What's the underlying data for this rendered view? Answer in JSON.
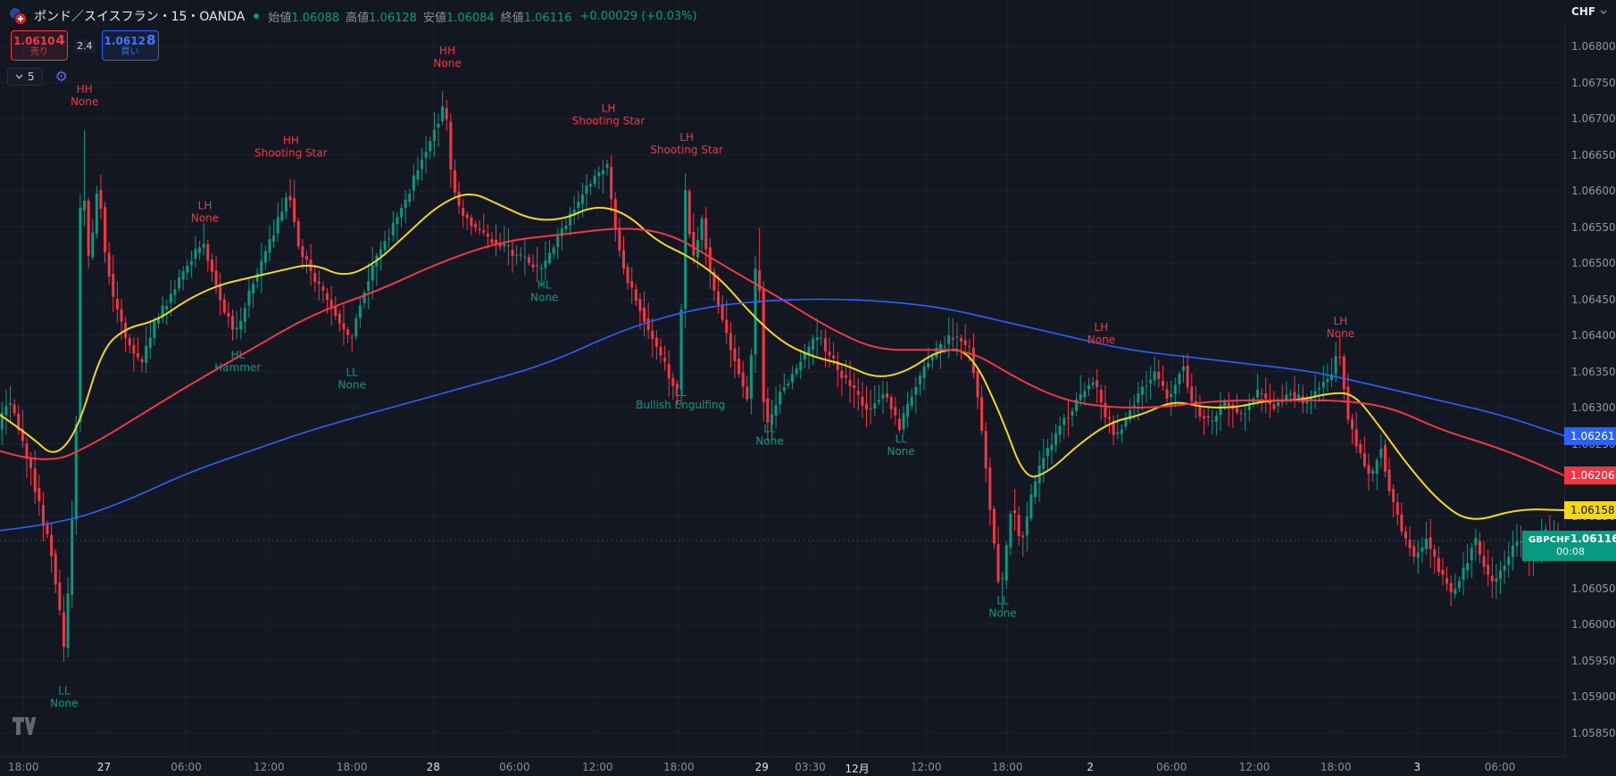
{
  "header": {
    "symbol_title": "ポンド／スイスフラン・15・OANDA",
    "ohlc": [
      {
        "label": "始値",
        "value": "1.06088"
      },
      {
        "label": "高値",
        "value": "1.06128"
      },
      {
        "label": "安値",
        "value": "1.06084"
      },
      {
        "label": "終値",
        "value": "1.06116"
      }
    ],
    "change": "+0.00029 (+0.03%)",
    "sell_price_main": "1.0610",
    "sell_price_big": "4",
    "sell_label": "売り",
    "spread": "2.4",
    "buy_price_main": "1.0612",
    "buy_price_big": "8",
    "buy_label": "買い",
    "indicator_count": "5"
  },
  "top_right": {
    "currency": "CHF"
  },
  "price_tags": [
    {
      "name": "ma-slow-price-tag",
      "value": "1.06261",
      "price": 1.06261,
      "bg": "#2962ff",
      "fg": "#ffffff"
    },
    {
      "name": "ma-mid-price-tag",
      "value": "1.06206",
      "price": 1.06206,
      "bg": "#f23645",
      "fg": "#ffffff"
    },
    {
      "name": "ma-fast-price-tag",
      "value": "1.06158",
      "price": 1.06158,
      "bg": "#f5d61e",
      "fg": "#131722"
    },
    {
      "name": "last-price-tag",
      "symbol": "GBPCHF",
      "value": "1.06116",
      "countdown": "00:08",
      "price": 1.06116,
      "bg": "#089981",
      "fg": "#ffffff",
      "wide": true
    }
  ],
  "chart_data": {
    "type": "candlestick",
    "symbol": "GBPCHF",
    "timeframe": "15",
    "exchange": "OANDA",
    "last_price": 1.06116,
    "candle_count": 380,
    "ylim": [
      1.0585,
      1.068
    ],
    "colors": {
      "up": "#089981",
      "down": "#f23645",
      "bull_label": "#089981",
      "bear_label": "#f23645",
      "grid": "rgba(151,161,180,0.07)"
    },
    "y_ticks": [
      "1.06800",
      "1.06750",
      "1.06700",
      "1.06650",
      "1.06600",
      "1.06550",
      "1.06500",
      "1.06450",
      "1.06400",
      "1.06350",
      "1.06300",
      "1.06250",
      "1.06200",
      "1.06150",
      "1.06100",
      "1.06050",
      "1.06000",
      "1.05950",
      "1.05900",
      "1.05850"
    ],
    "x_ticks": [
      {
        "label": "18:00",
        "f": 0.015,
        "major": false
      },
      {
        "label": "27",
        "f": 0.0665,
        "major": true
      },
      {
        "label": "06:00",
        "f": 0.119,
        "major": false
      },
      {
        "label": "12:00",
        "f": 0.172,
        "major": false
      },
      {
        "label": "18:00",
        "f": 0.225,
        "major": false
      },
      {
        "label": "28",
        "f": 0.277,
        "major": true
      },
      {
        "label": "06:00",
        "f": 0.329,
        "major": false
      },
      {
        "label": "12:00",
        "f": 0.382,
        "major": false
      },
      {
        "label": "18:00",
        "f": 0.434,
        "major": false
      },
      {
        "label": "29",
        "f": 0.487,
        "major": true
      },
      {
        "label": "03:30",
        "f": 0.518,
        "major": false
      },
      {
        "label": "12月",
        "f": 0.548,
        "major": true
      },
      {
        "label": "12:00",
        "f": 0.592,
        "major": false
      },
      {
        "label": "18:00",
        "f": 0.644,
        "major": false
      },
      {
        "label": "2",
        "f": 0.697,
        "major": true
      },
      {
        "label": "06:00",
        "f": 0.749,
        "major": false
      },
      {
        "label": "12:00",
        "f": 0.802,
        "major": false
      },
      {
        "label": "18:00",
        "f": 0.854,
        "major": false
      },
      {
        "label": "3",
        "f": 0.906,
        "major": true
      },
      {
        "label": "06:00",
        "f": 0.959,
        "major": false
      }
    ],
    "price_path": [
      [
        0.0,
        1.0627
      ],
      [
        0.006,
        1.0631
      ],
      [
        0.012,
        1.0628
      ],
      [
        0.02,
        1.0622
      ],
      [
        0.028,
        1.0615
      ],
      [
        0.034,
        1.061
      ],
      [
        0.04,
        1.0601
      ],
      [
        0.0415,
        1.0595
      ],
      [
        0.046,
        1.0608
      ],
      [
        0.05,
        1.0628
      ],
      [
        0.0535,
        1.0667
      ],
      [
        0.057,
        1.065
      ],
      [
        0.061,
        1.0655
      ],
      [
        0.064,
        1.0662
      ],
      [
        0.068,
        1.0652
      ],
      [
        0.074,
        1.0645
      ],
      [
        0.083,
        1.0639
      ],
      [
        0.092,
        1.0636
      ],
      [
        0.1,
        1.0642
      ],
      [
        0.11,
        1.0645
      ],
      [
        0.122,
        1.065
      ],
      [
        0.131,
        1.0653
      ],
      [
        0.142,
        1.0645
      ],
      [
        0.152,
        1.064
      ],
      [
        0.162,
        1.0647
      ],
      [
        0.174,
        1.0653
      ],
      [
        0.186,
        1.066
      ],
      [
        0.192,
        1.0652
      ],
      [
        0.205,
        1.0647
      ],
      [
        0.218,
        1.0642
      ],
      [
        0.225,
        1.0639
      ],
      [
        0.235,
        1.0647
      ],
      [
        0.245,
        1.0652
      ],
      [
        0.255,
        1.0656
      ],
      [
        0.263,
        1.066
      ],
      [
        0.27,
        1.0664
      ],
      [
        0.278,
        1.0668
      ],
      [
        0.286,
        1.0672
      ],
      [
        0.29,
        1.0661
      ],
      [
        0.296,
        1.0657
      ],
      [
        0.31,
        1.0654
      ],
      [
        0.325,
        1.0652
      ],
      [
        0.34,
        1.065
      ],
      [
        0.348,
        1.0649
      ],
      [
        0.358,
        1.0654
      ],
      [
        0.37,
        1.0658
      ],
      [
        0.382,
        1.0662
      ],
      [
        0.389,
        1.0664
      ],
      [
        0.394,
        1.0655
      ],
      [
        0.402,
        1.0648
      ],
      [
        0.412,
        1.0643
      ],
      [
        0.422,
        1.0638
      ],
      [
        0.43,
        1.0634
      ],
      [
        0.435,
        1.0632
      ],
      [
        0.4395,
        1.066
      ],
      [
        0.444,
        1.065
      ],
      [
        0.45,
        1.0656
      ],
      [
        0.456,
        1.0648
      ],
      [
        0.464,
        1.0641
      ],
      [
        0.472,
        1.0636
      ],
      [
        0.48,
        1.063
      ],
      [
        0.4855,
        1.0655
      ],
      [
        0.489,
        1.0632
      ],
      [
        0.4925,
        1.0627
      ],
      [
        0.5,
        1.0632
      ],
      [
        0.512,
        1.0636
      ],
      [
        0.524,
        1.064
      ],
      [
        0.532,
        1.0637
      ],
      [
        0.544,
        1.0633
      ],
      [
        0.556,
        1.063
      ],
      [
        0.568,
        1.0632
      ],
      [
        0.576,
        1.0627
      ],
      [
        0.584,
        1.0632
      ],
      [
        0.596,
        1.0637
      ],
      [
        0.61,
        1.064
      ],
      [
        0.622,
        1.0638
      ],
      [
        0.63,
        1.0625
      ],
      [
        0.636,
        1.0612
      ],
      [
        0.641,
        1.0604
      ],
      [
        0.648,
        1.0617
      ],
      [
        0.654,
        1.0611
      ],
      [
        0.66,
        1.0617
      ],
      [
        0.668,
        1.0623
      ],
      [
        0.678,
        1.0627
      ],
      [
        0.69,
        1.0631
      ],
      [
        0.7,
        1.0634
      ],
      [
        0.706,
        1.063
      ],
      [
        0.715,
        1.0626
      ],
      [
        0.722,
        1.0629
      ],
      [
        0.73,
        1.0632
      ],
      [
        0.74,
        1.0635
      ],
      [
        0.748,
        1.0631
      ],
      [
        0.757,
        1.0636
      ],
      [
        0.765,
        1.063
      ],
      [
        0.775,
        1.0628
      ],
      [
        0.785,
        1.0631
      ],
      [
        0.795,
        1.0629
      ],
      [
        0.805,
        1.0632
      ],
      [
        0.815,
        1.063
      ],
      [
        0.825,
        1.0632
      ],
      [
        0.835,
        1.0631
      ],
      [
        0.845,
        1.0633
      ],
      [
        0.852,
        1.0634
      ],
      [
        0.857,
        1.0638
      ],
      [
        0.863,
        1.0629
      ],
      [
        0.87,
        1.0624
      ],
      [
        0.878,
        1.062
      ],
      [
        0.884,
        1.0625
      ],
      [
        0.89,
        1.0618
      ],
      [
        0.898,
        1.0613
      ],
      [
        0.906,
        1.0609
      ],
      [
        0.914,
        1.0612
      ],
      [
        0.922,
        1.0607
      ],
      [
        0.93,
        1.0604
      ],
      [
        0.938,
        1.0608
      ],
      [
        0.944,
        1.0612
      ],
      [
        0.95,
        1.0608
      ],
      [
        0.956,
        1.0605
      ],
      [
        0.964,
        1.0609
      ],
      [
        0.972,
        1.0612
      ],
      [
        0.98,
        1.0609
      ],
      [
        0.988,
        1.0613
      ],
      [
        1.0,
        1.06116
      ]
    ],
    "ma_lines": [
      {
        "name": "ma-fast-line",
        "color": "#f5d61e",
        "width": 2,
        "points": [
          [
            0.0,
            1.0629
          ],
          [
            0.02,
            1.0626
          ],
          [
            0.035,
            1.0623
          ],
          [
            0.05,
            1.0627
          ],
          [
            0.065,
            1.0638
          ],
          [
            0.08,
            1.0641
          ],
          [
            0.1,
            1.0642
          ],
          [
            0.12,
            1.0645
          ],
          [
            0.14,
            1.0647
          ],
          [
            0.16,
            1.0648
          ],
          [
            0.18,
            1.0649
          ],
          [
            0.2,
            1.065
          ],
          [
            0.22,
            1.0648
          ],
          [
            0.24,
            1.065
          ],
          [
            0.26,
            1.0654
          ],
          [
            0.28,
            1.0658
          ],
          [
            0.3,
            1.066
          ],
          [
            0.32,
            1.0658
          ],
          [
            0.34,
            1.0656
          ],
          [
            0.36,
            1.0656
          ],
          [
            0.38,
            1.0658
          ],
          [
            0.4,
            1.0657
          ],
          [
            0.42,
            1.0653
          ],
          [
            0.44,
            1.0651
          ],
          [
            0.46,
            1.0648
          ],
          [
            0.48,
            1.0643
          ],
          [
            0.5,
            1.0639
          ],
          [
            0.52,
            1.0637
          ],
          [
            0.54,
            1.0636
          ],
          [
            0.56,
            1.0634
          ],
          [
            0.58,
            1.0635
          ],
          [
            0.6,
            1.0638
          ],
          [
            0.62,
            1.0638
          ],
          [
            0.64,
            1.0629
          ],
          [
            0.655,
            1.062
          ],
          [
            0.67,
            1.0621
          ],
          [
            0.69,
            1.0625
          ],
          [
            0.71,
            1.0628
          ],
          [
            0.73,
            1.0629
          ],
          [
            0.75,
            1.0631
          ],
          [
            0.77,
            1.063
          ],
          [
            0.79,
            1.063
          ],
          [
            0.81,
            1.0631
          ],
          [
            0.83,
            1.0631
          ],
          [
            0.85,
            1.0632
          ],
          [
            0.865,
            1.0632
          ],
          [
            0.88,
            1.0628
          ],
          [
            0.9,
            1.0622
          ],
          [
            0.92,
            1.0617
          ],
          [
            0.94,
            1.0614
          ],
          [
            0.97,
            1.0616
          ],
          [
            1.0,
            1.06158
          ]
        ]
      },
      {
        "name": "ma-mid-line",
        "color": "#f23645",
        "width": 2,
        "points": [
          [
            0.0,
            1.0624
          ],
          [
            0.03,
            1.0622
          ],
          [
            0.06,
            1.0625
          ],
          [
            0.09,
            1.0629
          ],
          [
            0.12,
            1.0633
          ],
          [
            0.16,
            1.0638
          ],
          [
            0.2,
            1.0643
          ],
          [
            0.24,
            1.0646
          ],
          [
            0.28,
            1.065
          ],
          [
            0.32,
            1.0653
          ],
          [
            0.36,
            1.0654
          ],
          [
            0.4,
            1.0655
          ],
          [
            0.43,
            1.0654
          ],
          [
            0.46,
            1.065
          ],
          [
            0.5,
            1.0645
          ],
          [
            0.53,
            1.0641
          ],
          [
            0.56,
            1.0638
          ],
          [
            0.59,
            1.0638
          ],
          [
            0.62,
            1.0638
          ],
          [
            0.65,
            1.0634
          ],
          [
            0.68,
            1.0631
          ],
          [
            0.71,
            1.063
          ],
          [
            0.74,
            1.063
          ],
          [
            0.78,
            1.0631
          ],
          [
            0.82,
            1.0631
          ],
          [
            0.86,
            1.0631
          ],
          [
            0.89,
            1.063
          ],
          [
            0.92,
            1.0627
          ],
          [
            0.95,
            1.0625
          ],
          [
            0.975,
            1.0623
          ],
          [
            1.0,
            1.06206
          ]
        ]
      },
      {
        "name": "ma-slow-line",
        "color": "#2962ff",
        "width": 1.6,
        "points": [
          [
            0.0,
            1.0613
          ],
          [
            0.04,
            1.0614
          ],
          [
            0.08,
            1.0617
          ],
          [
            0.12,
            1.0621
          ],
          [
            0.16,
            1.0624
          ],
          [
            0.2,
            1.0627
          ],
          [
            0.25,
            1.063
          ],
          [
            0.3,
            1.0633
          ],
          [
            0.35,
            1.0636
          ],
          [
            0.4,
            1.0641
          ],
          [
            0.45,
            1.0644
          ],
          [
            0.5,
            1.0645
          ],
          [
            0.55,
            1.0645
          ],
          [
            0.6,
            1.0644
          ],
          [
            0.64,
            1.0642
          ],
          [
            0.68,
            1.064
          ],
          [
            0.72,
            1.0638
          ],
          [
            0.76,
            1.0637
          ],
          [
            0.8,
            1.0636
          ],
          [
            0.84,
            1.0635
          ],
          [
            0.88,
            1.0633
          ],
          [
            0.92,
            1.0631
          ],
          [
            0.96,
            1.0629
          ],
          [
            1.0,
            1.06261
          ]
        ]
      }
    ],
    "patterns": [
      {
        "tag": "HH",
        "name": "None",
        "f": 0.054,
        "price": 1.06736,
        "side": "bear"
      },
      {
        "tag": "LL",
        "name": "None",
        "f": 0.041,
        "price": 1.05903,
        "side": "bull"
      },
      {
        "tag": "LH",
        "name": "None",
        "f": 0.131,
        "price": 1.06575,
        "side": "bear"
      },
      {
        "tag": "HL",
        "name": "Hammer",
        "f": 0.152,
        "price": 1.06368,
        "side": "bull"
      },
      {
        "tag": "HH",
        "name": "Shooting Star",
        "f": 0.186,
        "price": 1.06665,
        "side": "bear"
      },
      {
        "tag": "LL",
        "name": "None",
        "f": 0.225,
        "price": 1.06344,
        "side": "bull"
      },
      {
        "tag": "HH",
        "name": "None",
        "f": 0.286,
        "price": 1.06789,
        "side": "bear"
      },
      {
        "tag": "HL",
        "name": "None",
        "f": 0.348,
        "price": 1.06465,
        "side": "bull"
      },
      {
        "tag": "LH",
        "name": "Shooting Star",
        "f": 0.389,
        "price": 1.06709,
        "side": "bear"
      },
      {
        "tag": "LH",
        "name": "Shooting Star",
        "f": 0.439,
        "price": 1.06669,
        "side": "bear"
      },
      {
        "tag": "LL",
        "name": "Bullish Engulfing",
        "f": 0.435,
        "price": 1.06316,
        "side": "bull"
      },
      {
        "tag": "LL",
        "name": "None",
        "f": 0.492,
        "price": 1.06266,
        "side": "bull"
      },
      {
        "tag": "LL",
        "name": "None",
        "f": 0.576,
        "price": 1.06252,
        "side": "bull"
      },
      {
        "tag": "LL",
        "name": "None",
        "f": 0.641,
        "price": 1.06028,
        "side": "bull"
      },
      {
        "tag": "LH",
        "name": "None",
        "f": 0.704,
        "price": 1.06406,
        "side": "bear"
      },
      {
        "tag": "LH",
        "name": "None",
        "f": 0.857,
        "price": 1.06415,
        "side": "bear"
      }
    ]
  }
}
